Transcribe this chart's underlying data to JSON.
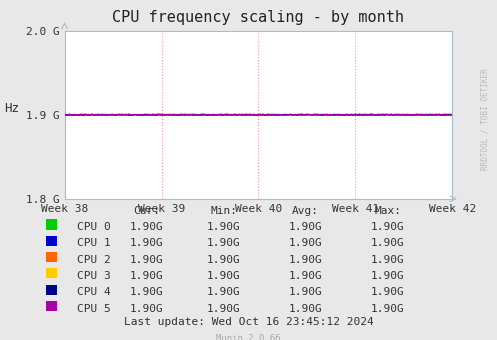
{
  "title": "CPU frequency scaling - by month",
  "ylabel": "Hz",
  "xlim": [
    0,
    1
  ],
  "ylim": [
    1800000000.0,
    2000000000.0
  ],
  "yticks": [
    1800000000.0,
    1900000000.0,
    2000000000.0
  ],
  "ytick_labels": [
    "1.8 G",
    "1.9 G",
    "2.0 G"
  ],
  "xtick_positions": [
    0.0,
    0.25,
    0.5,
    0.75,
    1.0
  ],
  "xtick_labels": [
    "Week 38",
    "Week 39",
    "Week 40",
    "Week 41",
    "Week 42"
  ],
  "cpu_value": 1900000000.0,
  "cpu_labels": [
    "CPU 0",
    "CPU 1",
    "CPU 2",
    "CPU 3",
    "CPU 4",
    "CPU 5"
  ],
  "cpu_colors": [
    "#00cc00",
    "#0000cc",
    "#ff6600",
    "#ffcc00",
    "#000088",
    "#aa00aa"
  ],
  "last_update": "Last update: Wed Oct 16 23:45:12 2024",
  "munin_version": "Munin 2.0.66",
  "watermark": "RRDTOOL / TOBI OETIKER",
  "bg_color": "#e8e8e8",
  "plot_bg_color": "#ffffff",
  "vgrid_color": "#ff9999",
  "hgrid_color": "#cccccc",
  "spine_color": "#aabbcc",
  "title_fontsize": 11,
  "tick_fontsize": 8,
  "legend_fontsize": 8
}
